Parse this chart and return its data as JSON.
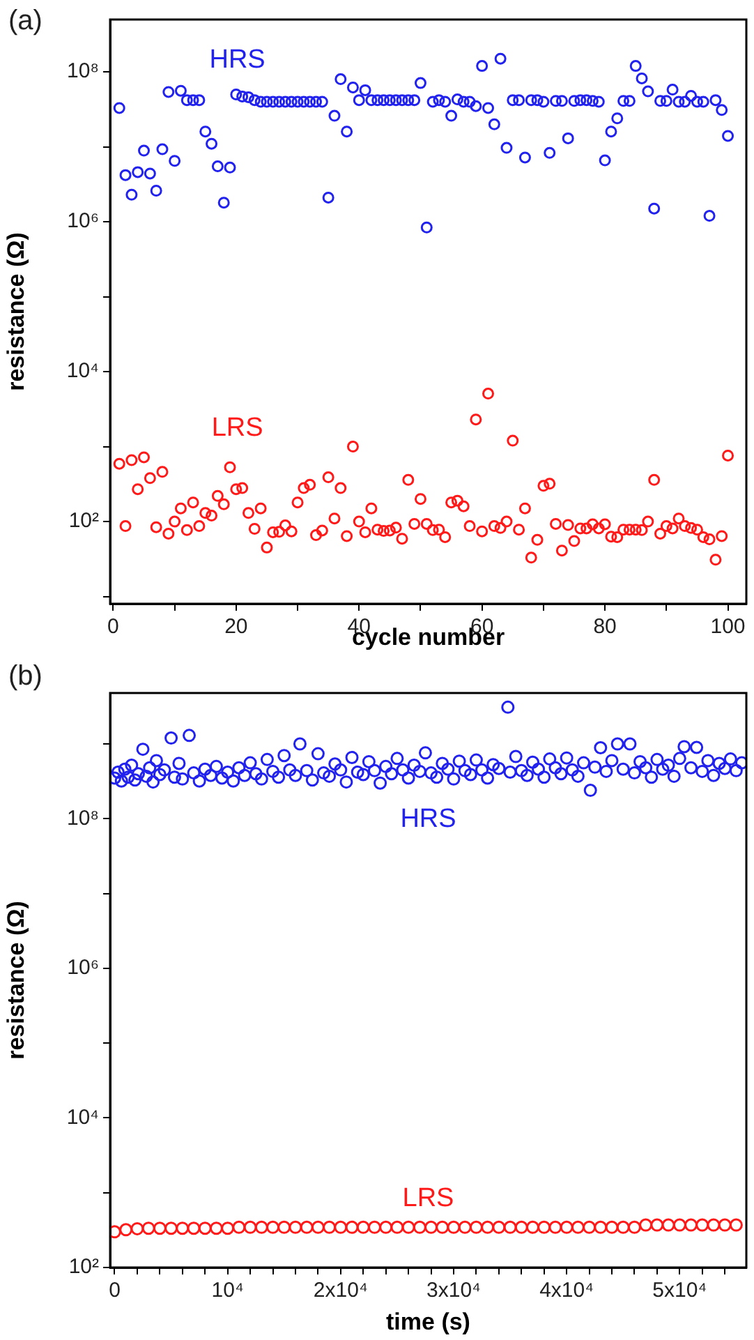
{
  "chart_data": [
    {
      "type": "scatter",
      "title": "(a)",
      "xlabel": "cycle number",
      "ylabel": "resistance (Ω)",
      "log": "y",
      "grid": false,
      "legend": false,
      "marker": "circle",
      "x": [
        1,
        2,
        3,
        4,
        5,
        6,
        7,
        8,
        9,
        10,
        11,
        12,
        13,
        14,
        15,
        16,
        17,
        18,
        19,
        20,
        21,
        22,
        23,
        24,
        25,
        26,
        27,
        28,
        29,
        30,
        31,
        32,
        33,
        34,
        35,
        36,
        37,
        38,
        39,
        40,
        41,
        42,
        43,
        44,
        45,
        46,
        47,
        48,
        49,
        50,
        51,
        52,
        53,
        54,
        55,
        56,
        57,
        58,
        59,
        60,
        61,
        62,
        63,
        64,
        65,
        66,
        67,
        68,
        69,
        70,
        71,
        72,
        73,
        74,
        75,
        76,
        77,
        78,
        79,
        80,
        81,
        82,
        83,
        84,
        85,
        86,
        87,
        88,
        89,
        90,
        91,
        92,
        93,
        94,
        95,
        96,
        97,
        98,
        99,
        100
      ],
      "xlim": [
        -0.5,
        103
      ],
      "xticks": [
        0,
        {
          "value": 10,
          "label": null
        },
        20,
        {
          "value": 30,
          "label": null
        },
        40,
        {
          "value": 50,
          "label": null
        },
        60,
        {
          "value": 70,
          "label": null
        },
        80,
        {
          "value": 90,
          "label": null
        },
        100
      ],
      "ylim": [
        8,
        500000000.0
      ],
      "yticks": [
        {
          "value": 10,
          "label": null
        },
        {
          "value": 100,
          "label": "10²"
        },
        {
          "value": 1000,
          "label": null
        },
        {
          "value": 10000,
          "label": "10⁴"
        },
        {
          "value": 100000,
          "label": null
        },
        {
          "value": 1000000,
          "label": "10⁶"
        },
        {
          "value": 10000000,
          "label": null
        },
        {
          "value": 100000000,
          "label": "10⁸"
        }
      ],
      "series": [
        {
          "name": "HRS",
          "color": "#2222ee",
          "values": [
            33000000.0,
            4200000.0,
            2300000.0,
            4600000.0,
            8900000.0,
            4400000.0,
            2600000.0,
            9300000.0,
            54000000.0,
            6500000.0,
            56000000.0,
            42000000.0,
            42000000.0,
            42000000.0,
            16000000.0,
            11000000.0,
            5500000.0,
            1800000.0,
            5300000.0,
            50000000.0,
            47000000.0,
            46000000.0,
            42000000.0,
            40000000.0,
            40000000.0,
            40000000.0,
            40000000.0,
            40000000.0,
            40000000.0,
            40000000.0,
            40000000.0,
            40000000.0,
            40000000.0,
            40000000.0,
            2100000.0,
            26000000.0,
            80000000.0,
            16000000.0,
            62000000.0,
            42000000.0,
            57000000.0,
            42000000.0,
            42000000.0,
            42000000.0,
            42000000.0,
            42000000.0,
            42000000.0,
            42000000.0,
            42000000.0,
            71000000.0,
            840000.0,
            40000000.0,
            42000000.0,
            40000000.0,
            26000000.0,
            43000000.0,
            40000000.0,
            40000000.0,
            35000000.0,
            120000000.0,
            33000000.0,
            20000000.0,
            150000000.0,
            9700000.0,
            42000000.0,
            42000000.0,
            7200000.0,
            42000000.0,
            42000000.0,
            40000000.0,
            8300000.0,
            41000000.0,
            41000000.0,
            13000000.0,
            41000000.0,
            42000000.0,
            42000000.0,
            41000000.0,
            40000000.0,
            6600000.0,
            16000000.0,
            24000000.0,
            41000000.0,
            41000000.0,
            120000000.0,
            82000000.0,
            55000000.0,
            1500000.0,
            41000000.0,
            41000000.0,
            58000000.0,
            40000000.0,
            40000000.0,
            48000000.0,
            40000000.0,
            40000000.0,
            1200000.0,
            42000000.0,
            31000000.0,
            14000000.0
          ]
        },
        {
          "name": "LRS",
          "color": "#ff1a1a",
          "values": [
            590,
            87,
            660,
            270,
            720,
            380,
            84,
            460,
            69,
            100,
            150,
            77,
            180,
            87,
            130,
            120,
            220,
            170,
            530,
            270,
            280,
            130,
            80,
            150,
            45,
            72,
            73,
            89,
            74,
            180,
            280,
            310,
            66,
            76,
            390,
            110,
            280,
            64,
            1000,
            100,
            72,
            150,
            78,
            75,
            76,
            83,
            59,
            360,
            93,
            200,
            93,
            77,
            78,
            62,
            180,
            190,
            160,
            87,
            2300,
            74,
            5100,
            87,
            82,
            100,
            1200,
            78,
            150,
            33,
            57,
            300,
            320,
            93,
            41,
            90,
            55,
            81,
            81,
            92,
            81,
            92,
            63,
            62,
            78,
            78,
            78,
            77,
            100,
            360,
            69,
            87,
            81,
            110,
            87,
            82,
            78,
            62,
            58,
            31,
            64,
            760
          ]
        }
      ]
    },
    {
      "type": "scatter",
      "title": "(b)",
      "xlabel": "time (s)",
      "ylabel": "resistance (Ω)",
      "log": "y",
      "grid": false,
      "legend": false,
      "marker": "circle",
      "xlim": [
        -400,
        55900
      ],
      "xticks": [
        0,
        {
          "value": 2000,
          "label": null
        },
        {
          "value": 4000,
          "label": null
        },
        {
          "value": 6000,
          "label": null
        },
        {
          "value": 8000,
          "label": null
        },
        {
          "value": 10000,
          "label": "10⁴"
        },
        {
          "value": 12000,
          "label": null
        },
        {
          "value": 14000,
          "label": null
        },
        {
          "value": 16000,
          "label": null
        },
        {
          "value": 18000,
          "label": null
        },
        {
          "value": 20000,
          "label": "2x10⁴"
        },
        {
          "value": 22000,
          "label": null
        },
        {
          "value": 24000,
          "label": null
        },
        {
          "value": 26000,
          "label": null
        },
        {
          "value": 28000,
          "label": null
        },
        {
          "value": 30000,
          "label": "3x10⁴"
        },
        {
          "value": 32000,
          "label": null
        },
        {
          "value": 34000,
          "label": null
        },
        {
          "value": 36000,
          "label": null
        },
        {
          "value": 38000,
          "label": null
        },
        {
          "value": 40000,
          "label": "4x10⁴"
        },
        {
          "value": 42000,
          "label": null
        },
        {
          "value": 44000,
          "label": null
        },
        {
          "value": 46000,
          "label": null
        },
        {
          "value": 48000,
          "label": null
        },
        {
          "value": 50000,
          "label": "5x10⁴"
        },
        {
          "value": 52000,
          "label": null
        },
        {
          "value": 54000,
          "label": null
        }
      ],
      "ylim": [
        100,
        4800000000.0
      ],
      "yticks": [
        {
          "value": 100,
          "label": "10²"
        },
        {
          "value": 1000,
          "label": null
        },
        {
          "value": 10000,
          "label": "10⁴"
        },
        {
          "value": 100000,
          "label": null
        },
        {
          "value": 1000000,
          "label": "10⁶"
        },
        {
          "value": 10000000,
          "label": null
        },
        {
          "value": 100000000,
          "label": "10⁸"
        },
        {
          "value": 1000000000,
          "label": null
        }
      ],
      "series": [
        {
          "name": "HRS",
          "color": "#2222ee",
          "x": [
            0,
            300,
            600,
            900,
            1200,
            1500,
            1800,
            2100,
            2500,
            2800,
            3100,
            3400,
            3700,
            4000,
            4400,
            5000,
            5300,
            5700,
            6000,
            6600,
            7000,
            7500,
            8000,
            8500,
            9000,
            9500,
            10000,
            10500,
            11000,
            11500,
            12000,
            12500,
            13000,
            13500,
            14000,
            14500,
            15000,
            15500,
            16000,
            16400,
            17000,
            17500,
            18000,
            18500,
            19000,
            19500,
            20000,
            20500,
            21000,
            21500,
            22000,
            22500,
            23000,
            23500,
            24000,
            24500,
            25000,
            25500,
            26000,
            26500,
            27000,
            27500,
            28000,
            28500,
            29000,
            29500,
            30000,
            30500,
            31000,
            31500,
            32000,
            32500,
            33000,
            33500,
            34000,
            34800,
            35000,
            35500,
            36000,
            36500,
            37000,
            37500,
            38000,
            38500,
            39000,
            39500,
            40000,
            40500,
            41000,
            41500,
            42100,
            42500,
            43000,
            43500,
            44000,
            44500,
            45000,
            45600,
            46000,
            46500,
            47000,
            47500,
            48000,
            48500,
            49000,
            49500,
            50000,
            50400,
            51000,
            51500,
            52000,
            52500,
            53000,
            53500,
            54000,
            54500,
            55000,
            55500
          ],
          "values": [
            350000000.0,
            420000000.0,
            320000000.0,
            460000000.0,
            360000000.0,
            520000000.0,
            330000000.0,
            400000000.0,
            850000000.0,
            370000000.0,
            480000000.0,
            310000000.0,
            600000000.0,
            390000000.0,
            450000000.0,
            1200000000.0,
            360000000.0,
            550000000.0,
            340000000.0,
            1300000000.0,
            410000000.0,
            320000000.0,
            460000000.0,
            380000000.0,
            500000000.0,
            350000000.0,
            420000000.0,
            320000000.0,
            480000000.0,
            380000000.0,
            560000000.0,
            400000000.0,
            340000000.0,
            620000000.0,
            430000000.0,
            360000000.0,
            700000000.0,
            450000000.0,
            380000000.0,
            1000000000.0,
            440000000.0,
            330000000.0,
            740000000.0,
            410000000.0,
            370000000.0,
            540000000.0,
            450000000.0,
            310000000.0,
            660000000.0,
            420000000.0,
            390000000.0,
            580000000.0,
            440000000.0,
            300000000.0,
            500000000.0,
            400000000.0,
            640000000.0,
            450000000.0,
            350000000.0,
            520000000.0,
            430000000.0,
            760000000.0,
            410000000.0,
            360000000.0,
            550000000.0,
            460000000.0,
            340000000.0,
            590000000.0,
            440000000.0,
            390000000.0,
            610000000.0,
            450000000.0,
            350000000.0,
            530000000.0,
            470000000.0,
            3100000000.0,
            420000000.0,
            680000000.0,
            440000000.0,
            380000000.0,
            570000000.0,
            460000000.0,
            360000000.0,
            630000000.0,
            480000000.0,
            400000000.0,
            650000000.0,
            450000000.0,
            370000000.0,
            560000000.0,
            240000000.0,
            490000000.0,
            890000000.0,
            430000000.0,
            600000000.0,
            1000000000.0,
            460000000.0,
            1000000000.0,
            410000000.0,
            580000000.0,
            480000000.0,
            360000000.0,
            620000000.0,
            460000000.0,
            520000000.0,
            370000000.0,
            640000000.0,
            920000000.0,
            480000000.0,
            900000000.0,
            430000000.0,
            600000000.0,
            380000000.0,
            550000000.0,
            470000000.0,
            630000000.0,
            440000000.0,
            560000000.0
          ]
        },
        {
          "name": "LRS",
          "color": "#ff1a1a",
          "x": [
            0,
            1000,
            2000,
            3000,
            4000,
            5000,
            6000,
            7000,
            8000,
            9000,
            10000,
            11000,
            12000,
            13000,
            14000,
            15000,
            16000,
            17000,
            18000,
            19000,
            20000,
            21000,
            22000,
            23000,
            24000,
            25000,
            26000,
            27000,
            28000,
            29000,
            30000,
            31000,
            32000,
            33000,
            34000,
            35000,
            36000,
            37000,
            38000,
            39000,
            40000,
            41000,
            42000,
            43000,
            44000,
            45000,
            46000,
            47000,
            48000,
            49000,
            50000,
            51000,
            52000,
            53000,
            54000,
            55000
          ],
          "values": [
            300,
            320,
            330,
            335,
            335,
            335,
            335,
            335,
            335,
            335,
            335,
            345,
            345,
            345,
            345,
            345,
            345,
            345,
            345,
            345,
            345,
            345,
            345,
            345,
            345,
            345,
            345,
            345,
            345,
            345,
            345,
            345,
            345,
            345,
            345,
            345,
            345,
            345,
            345,
            345,
            345,
            345,
            345,
            345,
            345,
            345,
            345,
            370,
            370,
            370,
            370,
            370,
            370,
            370,
            370,
            370
          ]
        }
      ]
    }
  ]
}
